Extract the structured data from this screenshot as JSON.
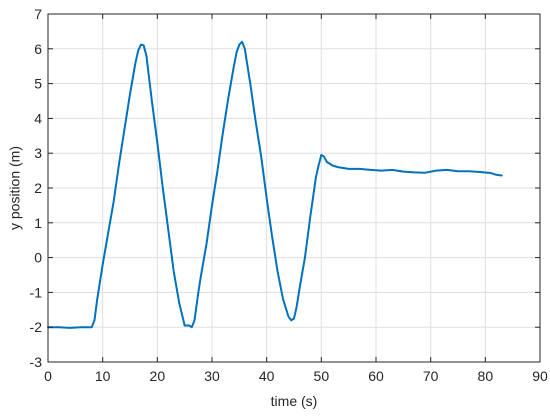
{
  "chart_data": {
    "type": "line",
    "title": "",
    "xlabel": "time (s)",
    "ylabel": "y position (m)",
    "xlim": [
      0,
      90
    ],
    "ylim": [
      -3,
      7
    ],
    "xticks": [
      0,
      10,
      20,
      30,
      40,
      50,
      60,
      70,
      80,
      90
    ],
    "yticks": [
      -3,
      -2,
      -1,
      0,
      1,
      2,
      3,
      4,
      5,
      6,
      7
    ],
    "grid": true,
    "legend": "none",
    "colors": {
      "series": "#0072BD",
      "grid": "#dfdfdf",
      "axis": "#262626"
    },
    "series": [
      {
        "x": [
          0,
          2,
          4,
          6,
          8,
          8.5,
          9,
          10,
          11,
          12,
          13,
          14,
          15,
          16,
          16.5,
          17,
          17.5,
          18,
          19,
          20,
          21,
          22,
          23,
          24,
          25,
          25.8,
          26.3,
          26.8,
          27.5,
          28,
          29,
          30,
          31,
          32,
          33,
          34,
          34.5,
          35,
          35.5,
          36,
          37,
          38,
          39,
          40,
          41,
          42,
          43,
          44,
          44.5,
          45,
          45.5,
          46,
          47,
          48,
          49,
          49.5,
          50,
          50.5,
          51,
          52,
          53,
          55,
          57,
          59,
          61,
          63,
          65,
          67,
          69,
          71,
          73,
          75,
          77,
          79,
          81,
          82,
          83
        ],
        "y": [
          -2.0,
          -2.0,
          -2.02,
          -2.0,
          -2.0,
          -1.8,
          -1.2,
          -0.2,
          0.7,
          1.6,
          2.7,
          3.7,
          4.7,
          5.6,
          5.95,
          6.12,
          6.1,
          5.8,
          4.5,
          3.3,
          2.0,
          0.8,
          -0.4,
          -1.3,
          -1.95,
          -1.95,
          -2.0,
          -1.8,
          -1.0,
          -0.5,
          0.4,
          1.5,
          2.5,
          3.6,
          4.6,
          5.5,
          5.9,
          6.12,
          6.2,
          6.0,
          5.0,
          3.9,
          2.9,
          1.7,
          0.6,
          -0.4,
          -1.2,
          -1.7,
          -1.8,
          -1.75,
          -1.4,
          -0.9,
          0.0,
          1.2,
          2.3,
          2.65,
          2.95,
          2.9,
          2.75,
          2.65,
          2.6,
          2.55,
          2.55,
          2.52,
          2.5,
          2.52,
          2.47,
          2.45,
          2.44,
          2.5,
          2.52,
          2.48,
          2.48,
          2.46,
          2.43,
          2.38,
          2.36
        ]
      }
    ]
  }
}
